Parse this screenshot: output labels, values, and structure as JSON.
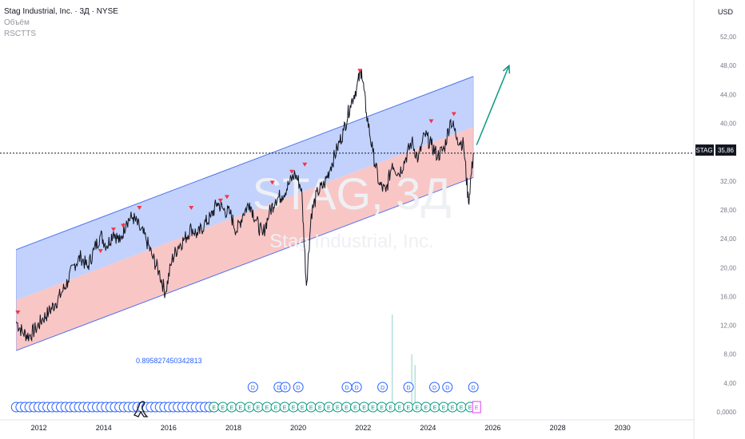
{
  "header": {
    "title": "Stag Industrial, Inc. · 3Д · NYSE",
    "volume_label": "Объём",
    "indicator_label": "RSCTTS",
    "currency": "USD"
  },
  "watermark": {
    "ticker": "STAG, 3Д",
    "company": "Stag Industrial, Inc."
  },
  "price_tag": {
    "symbol": "STAG",
    "value": "35,86",
    "price": 35.86
  },
  "annotation_value": "0.895827450342813",
  "colors": {
    "upper_band": "#b3c7fb",
    "lower_band": "#f8bcbc",
    "band_line": "#4f72f0",
    "arrow": "#089981",
    "marker": "#f23645",
    "dividend": "#2962ff",
    "earnings": "#089981"
  },
  "markers": {
    "dividend_letter": "D",
    "earnings_letter": "E"
  },
  "chart_data": {
    "type": "line",
    "x_unit": "year",
    "xlim": [
      2010.8,
      2032.2
    ],
    "ylim": [
      0,
      54
    ],
    "x_ticks": [
      "2012",
      "2014",
      "2016",
      "2018",
      "2020",
      "2022",
      "2024",
      "2026",
      "2028",
      "2030"
    ],
    "y_ticks": [
      "0,0000",
      "4,00",
      "8,00",
      "12,00",
      "16,00",
      "20,00",
      "24,00",
      "28,00",
      "32,00",
      "36,00",
      "40,00",
      "44,00",
      "48,00",
      "52,00"
    ],
    "series": [
      {
        "x": [
          2011.3,
          2011.5,
          2011.7,
          2011.9,
          2012.1,
          2012.3,
          2012.5,
          2012.7,
          2012.9,
          2013.1,
          2013.3,
          2013.5,
          2013.7,
          2013.9,
          2014.1,
          2014.3,
          2014.5,
          2014.7,
          2014.9,
          2015.1,
          2015.3,
          2015.5,
          2015.7,
          2015.9,
          2016.1,
          2016.3,
          2016.5,
          2016.7,
          2016.9,
          2017.1,
          2017.3,
          2017.5,
          2017.7,
          2017.9,
          2018.1,
          2018.3,
          2018.5,
          2018.7,
          2018.9,
          2019.1,
          2019.3,
          2019.5,
          2019.7,
          2019.9,
          2020.1,
          2020.25,
          2020.4,
          2020.6,
          2020.8,
          2021.0,
          2021.2,
          2021.4,
          2021.6,
          2021.8,
          2021.95,
          2022.1,
          2022.3,
          2022.5,
          2022.7,
          2022.9,
          2023.1,
          2023.3,
          2023.5,
          2023.7,
          2023.9,
          2024.1,
          2024.3,
          2024.5,
          2024.7,
          2024.9,
          2025.1,
          2025.25,
          2025.4
        ],
        "y": [
          12.5,
          11.0,
          10.5,
          11.5,
          12.8,
          13.8,
          15.0,
          16.5,
          18.2,
          20.5,
          21.5,
          20.0,
          22.5,
          24.5,
          23.0,
          25.0,
          23.5,
          26.5,
          27.0,
          25.5,
          24.0,
          21.5,
          19.5,
          16.5,
          21.0,
          23.0,
          24.0,
          25.5,
          24.5,
          26.0,
          27.0,
          29.0,
          28.0,
          27.5,
          25.0,
          27.5,
          29.0,
          26.5,
          24.5,
          27.5,
          29.5,
          30.0,
          31.5,
          33.0,
          31.0,
          17.5,
          27.5,
          30.5,
          31.5,
          34.0,
          36.5,
          39.0,
          42.5,
          45.0,
          47.5,
          41.5,
          36.0,
          31.5,
          30.5,
          34.5,
          33.0,
          35.0,
          37.5,
          35.0,
          38.5,
          37.0,
          35.5,
          36.5,
          40.5,
          38.0,
          37.0,
          29.0,
          35.86
        ]
      }
    ],
    "regression_channel": {
      "x": [
        2011.3,
        2025.4
      ],
      "upper": [
        22.5,
        46.5
      ],
      "center": [
        15.5,
        39.5
      ],
      "lower": [
        8.5,
        32.5
      ]
    },
    "high_markers": {
      "x": [
        2011.35,
        2013.9,
        2014.3,
        2014.6,
        2015.1,
        2016.7,
        2017.6,
        2017.8,
        2019.2,
        2019.8,
        2020.2,
        2021.9,
        2024.1,
        2024.8
      ],
      "y": [
        13.5,
        22.0,
        25.0,
        25.5,
        28.0,
        28.0,
        29.0,
        29.5,
        31.5,
        33.0,
        34.0,
        47.0,
        40.0,
        41.0
      ]
    },
    "projection_arrow": {
      "x": [
        2025.5,
        2026.5
      ],
      "y": [
        37.0,
        48.0
      ]
    },
    "volume_spikes": {
      "x": [
        2022.9,
        2023.5,
        2023.6
      ],
      "y": [
        13.5,
        8.0,
        6.5
      ]
    },
    "dividend_markers": [
      2018.6,
      2019.4,
      2019.6,
      2020.0,
      2021.5,
      2021.8,
      2022.6,
      2023.4,
      2024.2,
      2024.6,
      2025.4
    ],
    "earnings_markers": {
      "start": 2017.4,
      "end": 2025.3,
      "count": 30,
      "last": 2025.5
    },
    "events_start": {
      "start": 2011.3,
      "end": 2017.4,
      "count": 45
    }
  }
}
